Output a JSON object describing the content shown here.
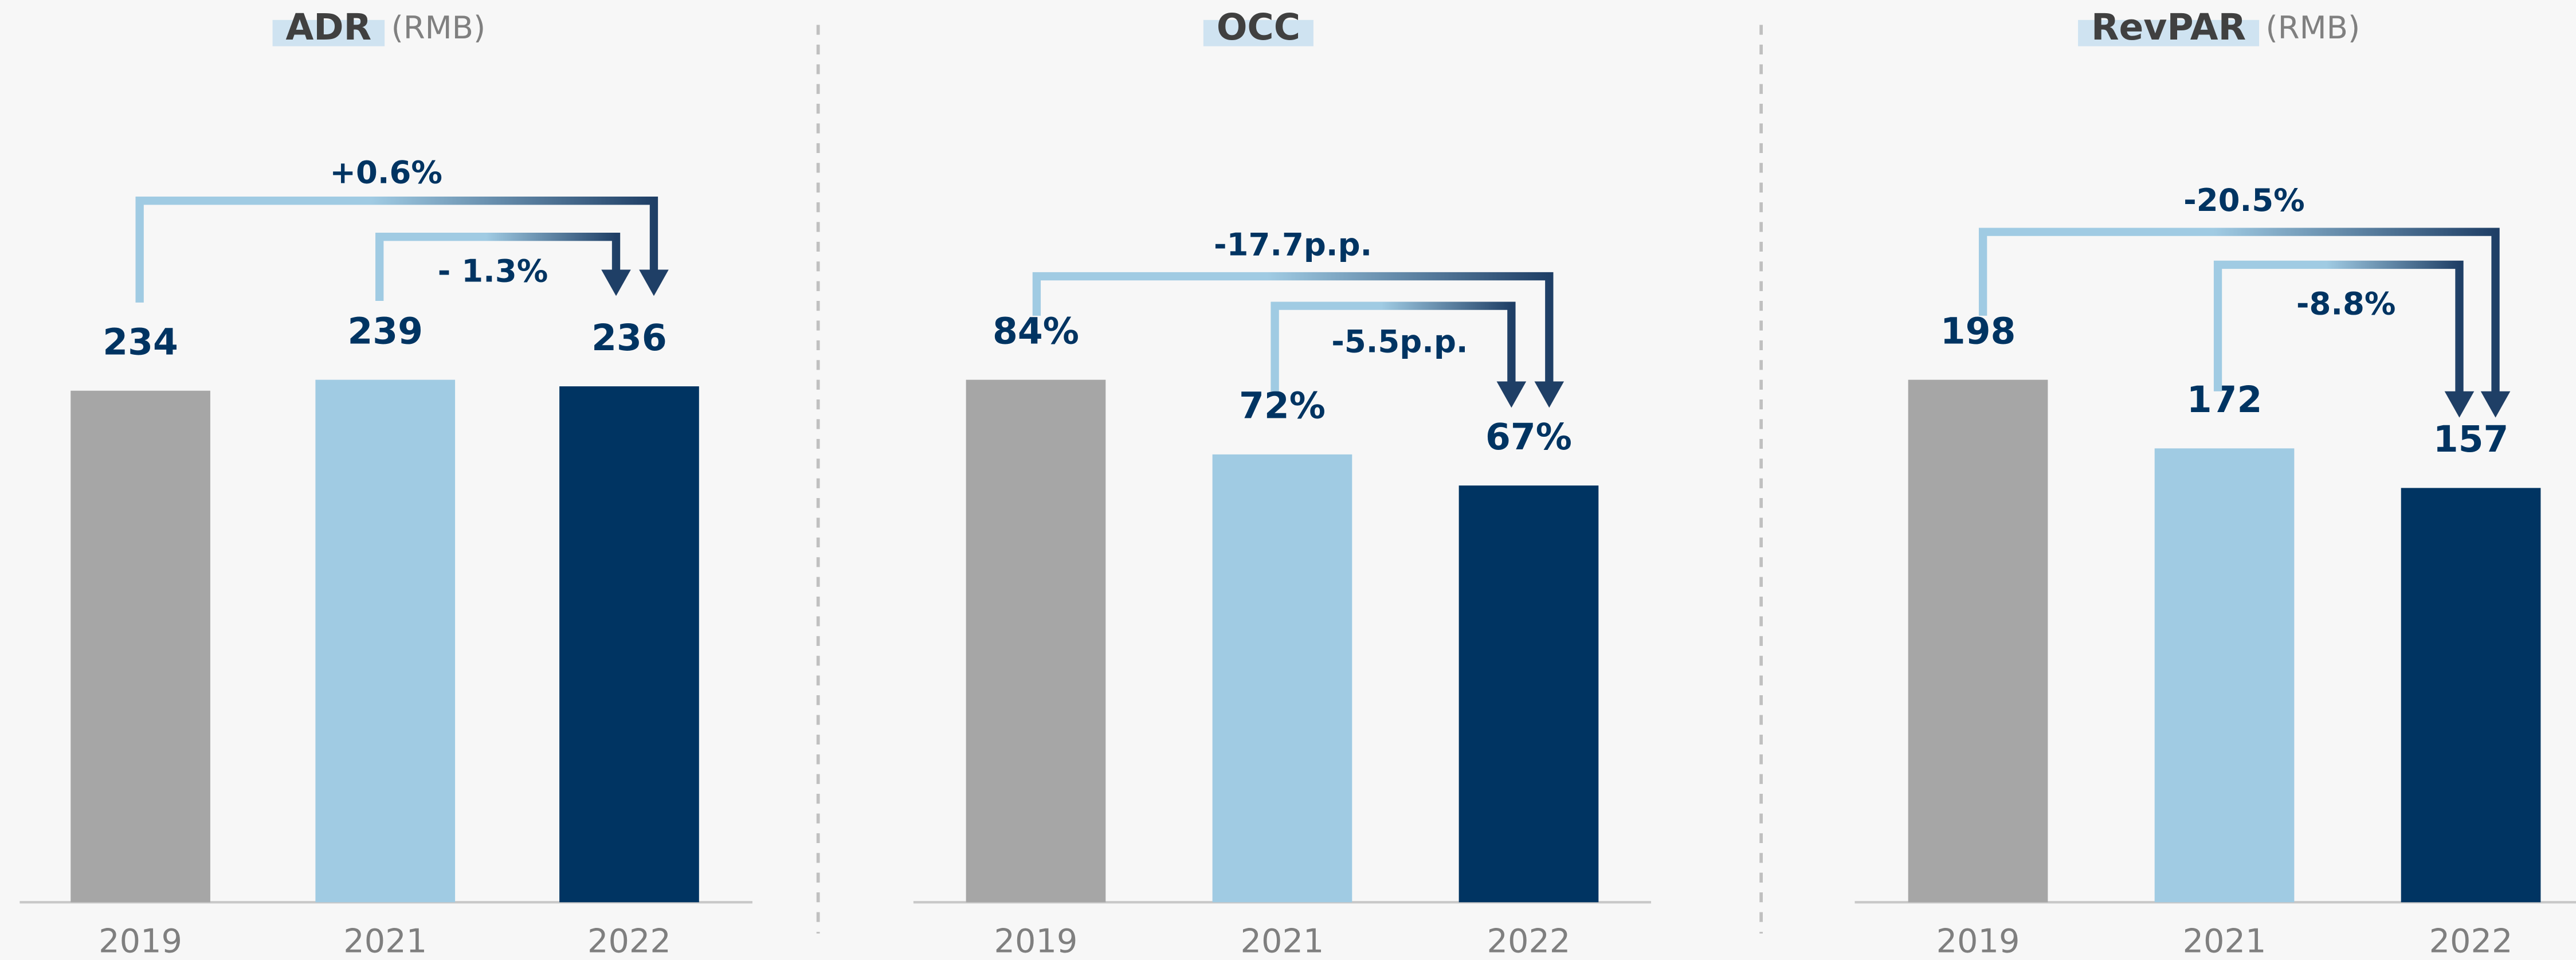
{
  "chart_data": [
    {
      "type": "bar",
      "title": "ADR",
      "subtitle": "(RMB)",
      "categories": [
        "2019",
        "2021",
        "2022"
      ],
      "values": [
        234,
        239,
        236
      ],
      "colors": [
        "#a6a6a6",
        "#a0cbe3",
        "#003462"
      ],
      "annotations": [
        "+0.6%",
        "- 1.3%"
      ]
    },
    {
      "type": "bar",
      "title": "OCC",
      "categories": [
        "2019",
        "2021",
        "2022"
      ],
      "values": [
        84,
        72,
        67
      ],
      "value_labels": [
        "84%",
        "72%",
        "67%"
      ],
      "colors": [
        "#a6a6a6",
        "#a0cbe3",
        "#003462"
      ],
      "annotations": [
        "-17.7p.p.",
        "-5.5p.p."
      ]
    },
    {
      "type": "bar",
      "title": "RevPAR",
      "subtitle": "(RMB)",
      "categories": [
        "2019",
        "2021",
        "2022"
      ],
      "values": [
        198,
        172,
        157
      ],
      "colors": [
        "#a6a6a6",
        "#a0cbe3",
        "#003462"
      ],
      "annotations": [
        "-20.5%",
        "-8.8%"
      ]
    }
  ]
}
